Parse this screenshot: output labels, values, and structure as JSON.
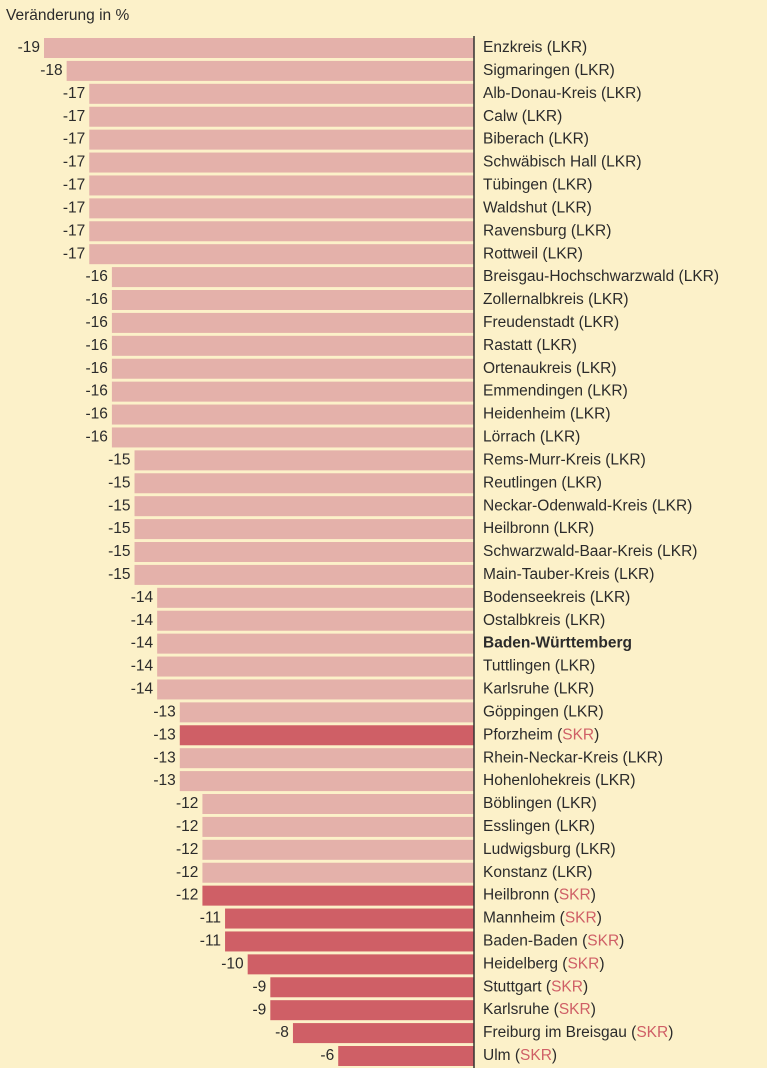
{
  "chart_data": {
    "type": "hbar",
    "title": "Veränderung in %",
    "categories": [
      "Enzkreis (LKR)",
      "Sigmaringen (LKR)",
      "Alb-Donau-Kreis (LKR)",
      "Calw (LKR)",
      "Biberach (LKR)",
      "Schwäbisch Hall (LKR)",
      "Tübingen (LKR)",
      "Waldshut (LKR)",
      "Ravensburg (LKR)",
      "Rottweil (LKR)",
      "Breisgau-Hochschwarzwald (LKR)",
      "Zollernalbkreis (LKR)",
      "Freudenstadt (LKR)",
      "Rastatt (LKR)",
      "Ortenaukreis (LKR)",
      "Emmendingen (LKR)",
      "Heidenheim (LKR)",
      "Lörrach (LKR)",
      "Rems-Murr-Kreis (LKR)",
      "Reutlingen (LKR)",
      "Neckar-Odenwald-Kreis (LKR)",
      "Heilbronn (LKR)",
      "Schwarzwald-Baar-Kreis (LKR)",
      "Main-Tauber-Kreis (LKR)",
      "Bodenseekreis (LKR)",
      "Ostalbkreis (LKR)",
      "Baden-Württemberg",
      "Tuttlingen (LKR)",
      "Karlsruhe (LKR)",
      "Göppingen (LKR)",
      "Pforzheim (SKR)",
      "Rhein-Neckar-Kreis (LKR)",
      "Hohenlohekreis (LKR)",
      "Böblingen (LKR)",
      "Esslingen (LKR)",
      "Ludwigsburg (LKR)",
      "Konstanz (LKR)",
      "Heilbronn (SKR)",
      "Mannheim (SKR)",
      "Baden-Baden (SKR)",
      "Heidelberg (SKR)",
      "Stuttgart (SKR)",
      "Karlsruhe (SKR)",
      "Freiburg im Breisgau (SKR)",
      "Ulm (SKR)"
    ],
    "values": [
      -19,
      -18,
      -17,
      -17,
      -17,
      -17,
      -17,
      -17,
      -17,
      -17,
      -16,
      -16,
      -16,
      -16,
      -16,
      -16,
      -16,
      -16,
      -15,
      -15,
      -15,
      -15,
      -15,
      -15,
      -14,
      -14,
      -14,
      -14,
      -14,
      -13,
      -13,
      -13,
      -13,
      -12,
      -12,
      -12,
      -12,
      -12,
      -11,
      -11,
      -10,
      -9,
      -9,
      -8,
      -6
    ],
    "colors": [
      "#e4b1aa",
      "#e4b1aa",
      "#e4b1aa",
      "#e4b1aa",
      "#e4b1aa",
      "#e4b1aa",
      "#e4b1aa",
      "#e4b1aa",
      "#e4b1aa",
      "#e4b1aa",
      "#e4b1aa",
      "#e4b1aa",
      "#e4b1aa",
      "#e4b1aa",
      "#e4b1aa",
      "#e4b1aa",
      "#e4b1aa",
      "#e4b1aa",
      "#e4b1aa",
      "#e4b1aa",
      "#e4b1aa",
      "#e4b1aa",
      "#e4b1aa",
      "#e4b1aa",
      "#e4b1aa",
      "#e4b1aa",
      "#e4b1aa",
      "#e4b1aa",
      "#e4b1aa",
      "#e4b1aa",
      "#cf5f66",
      "#e4b1aa",
      "#e4b1aa",
      "#e4b1aa",
      "#e4b1aa",
      "#e4b1aa",
      "#e4b1aa",
      "#cf5f66",
      "#cf5f66",
      "#cf5f66",
      "#cf5f66",
      "#cf5f66",
      "#cf5f66",
      "#cf5f66",
      "#cf5f66"
    ],
    "bold_index": 26,
    "xlim": [
      -19,
      0
    ]
  }
}
